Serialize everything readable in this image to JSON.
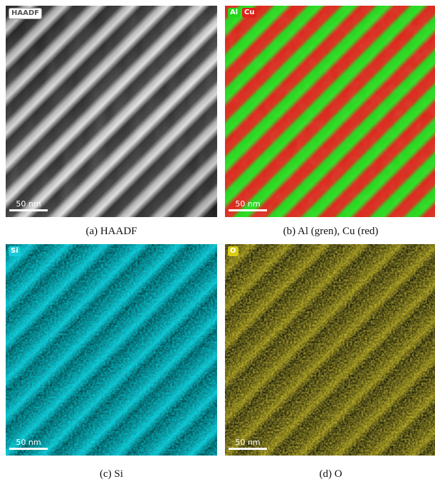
{
  "panels": {
    "a": {
      "caption": "(a) HAADF",
      "tags": [
        "HAADF"
      ],
      "scale_bar": "50 nm"
    },
    "b": {
      "caption": "(b) Al (gren), Cu (red)",
      "tags": [
        "Al",
        "Cu"
      ],
      "scale_bar": "50 nm"
    },
    "c": {
      "caption": "(c) Si",
      "tags": [
        "Si"
      ],
      "scale_bar": "50 nm"
    },
    "d": {
      "caption": "(d) O",
      "tags": [
        "O"
      ],
      "scale_bar": "50 nm"
    }
  },
  "colors": {
    "al_green": "#22d61a",
    "cu_red": "#e0221a",
    "si_cyan": "#19c9d9",
    "o_yellow": "#d9cc14"
  }
}
